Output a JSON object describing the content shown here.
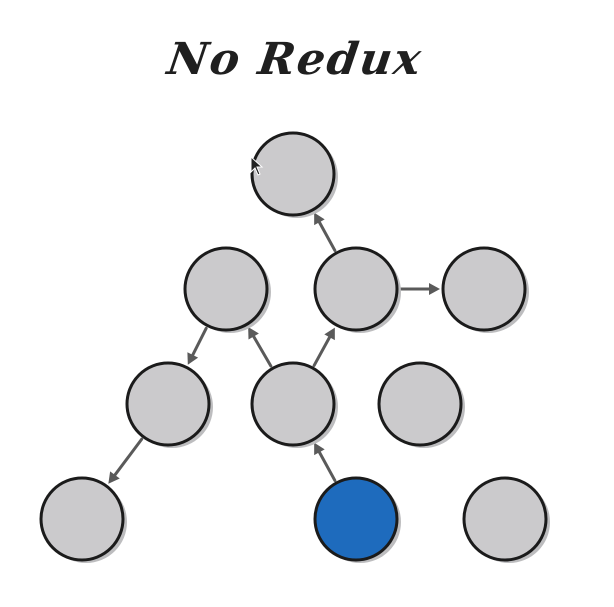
{
  "title": "No Redux",
  "colors": {
    "node_fill": "#cbcacc",
    "active_fill": "#1e6bbd",
    "outline": "#1b1b1b",
    "arrow": "#5a5a5a"
  },
  "diagram": {
    "nodes": [
      {
        "id": "root",
        "active": false
      },
      {
        "id": "l1-left",
        "active": false
      },
      {
        "id": "l1-middle",
        "active": false
      },
      {
        "id": "l1-right",
        "active": false
      },
      {
        "id": "l2-left",
        "active": false
      },
      {
        "id": "l2-middle",
        "active": false
      },
      {
        "id": "l2-right",
        "active": false
      },
      {
        "id": "l3-left",
        "active": false
      },
      {
        "id": "l3-middle",
        "active": true
      },
      {
        "id": "l3-right",
        "active": false
      }
    ],
    "edges": [
      {
        "from": "l1-middle",
        "to": "root"
      },
      {
        "from": "l1-middle",
        "to": "l1-right"
      },
      {
        "from": "l1-left",
        "to": "l2-left"
      },
      {
        "from": "l2-middle",
        "to": "l1-left"
      },
      {
        "from": "l2-middle",
        "to": "l1-middle"
      },
      {
        "from": "l2-left",
        "to": "l3-left"
      },
      {
        "from": "l3-middle",
        "to": "l2-middle"
      }
    ]
  },
  "icons": {
    "cursor": "mouse-pointer-icon"
  }
}
